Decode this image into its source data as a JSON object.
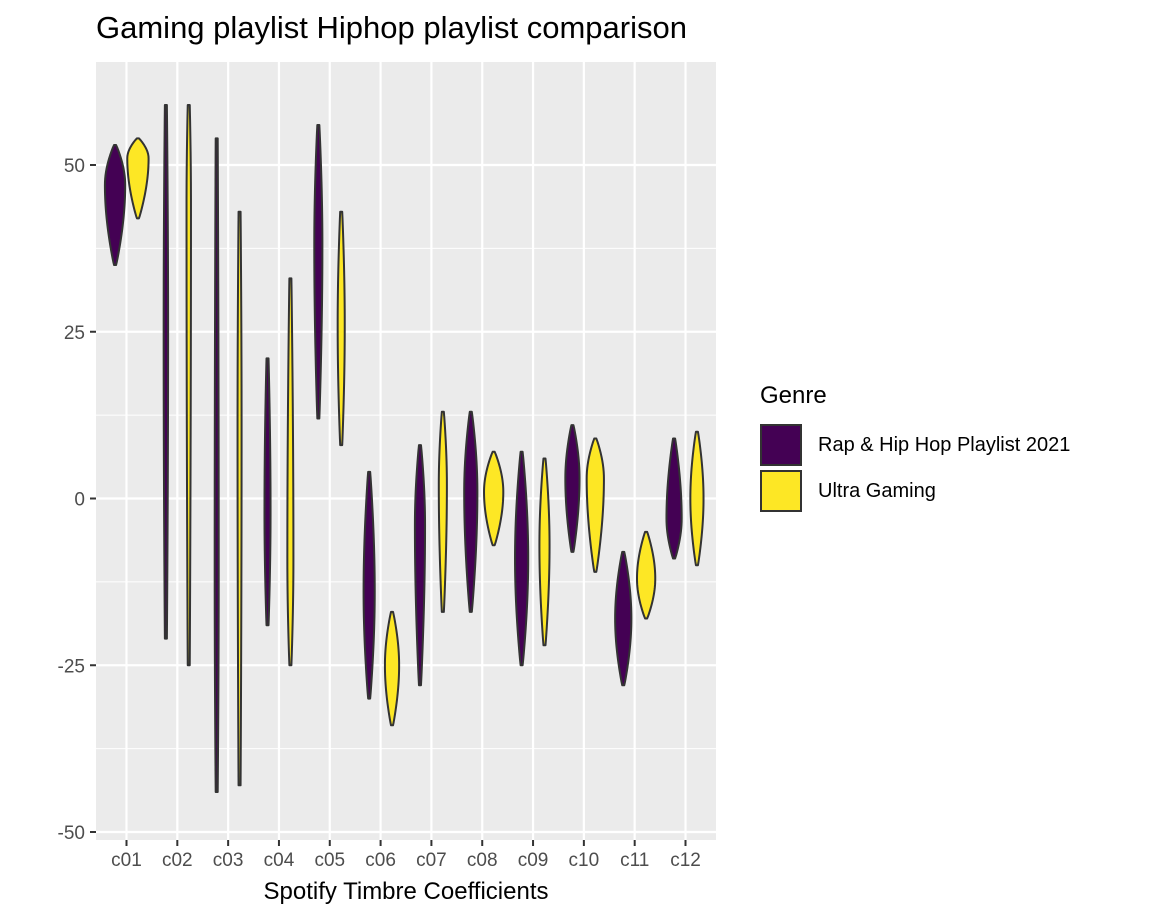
{
  "chart_data": {
    "type": "violin",
    "title": "Gaming playlist Hiphop playlist comparison",
    "xlabel": "Spotify Timbre Coefficients",
    "ylabel": "",
    "ylim": [
      -50,
      62
    ],
    "yticks": [
      -50,
      -25,
      0,
      25,
      50
    ],
    "categories": [
      "c01",
      "c02",
      "c03",
      "c04",
      "c05",
      "c06",
      "c07",
      "c08",
      "c09",
      "c10",
      "c11",
      "c12"
    ],
    "grid": true,
    "legend": {
      "title": "Genre",
      "placement": "right",
      "entries": [
        "Rap & Hip Hop Playlist 2021",
        "Ultra Gaming"
      ]
    },
    "series": [
      {
        "name": "Rap & Hip Hop Playlist 2021",
        "color": "#440154",
        "ranges": [
          [
            35,
            53
          ],
          [
            -21,
            59
          ],
          [
            -44,
            54
          ],
          [
            -19,
            21
          ],
          [
            12,
            56
          ],
          [
            -30,
            4
          ],
          [
            -28,
            8
          ],
          [
            -17,
            13
          ],
          [
            -25,
            7
          ],
          [
            -8,
            11
          ],
          [
            -28,
            -8
          ],
          [
            -9,
            9
          ]
        ],
        "medians": [
          47,
          25,
          -10,
          -2,
          38,
          -14,
          -4,
          1,
          -9,
          3,
          -18,
          -3
        ],
        "peak_width": [
          0.9,
          0.12,
          0.1,
          0.2,
          0.3,
          0.45,
          0.4,
          0.55,
          0.55,
          0.6,
          0.7,
          0.65
        ]
      },
      {
        "name": "Ultra Gaming",
        "color": "#fde725",
        "ranges": [
          [
            42,
            54
          ],
          [
            -25,
            59
          ],
          [
            -43,
            43
          ],
          [
            -25,
            33
          ],
          [
            8,
            43
          ],
          [
            -34,
            -17
          ],
          [
            -17,
            13
          ],
          [
            -7,
            7
          ],
          [
            -22,
            6
          ],
          [
            -11,
            9
          ],
          [
            -18,
            -5
          ],
          [
            -10,
            10
          ]
        ],
        "medians": [
          51,
          44,
          10,
          -9,
          26,
          -25,
          2,
          1,
          -7,
          3,
          -12,
          0
        ],
        "peak_width": [
          0.95,
          0.12,
          0.1,
          0.2,
          0.25,
          0.6,
          0.3,
          0.85,
          0.4,
          0.75,
          0.8,
          0.55
        ]
      }
    ]
  },
  "colors": {
    "panel_background": "#ebebeb",
    "grid_major": "#ffffff",
    "outline": "#333333",
    "tick_text": "#4d4d4d"
  }
}
